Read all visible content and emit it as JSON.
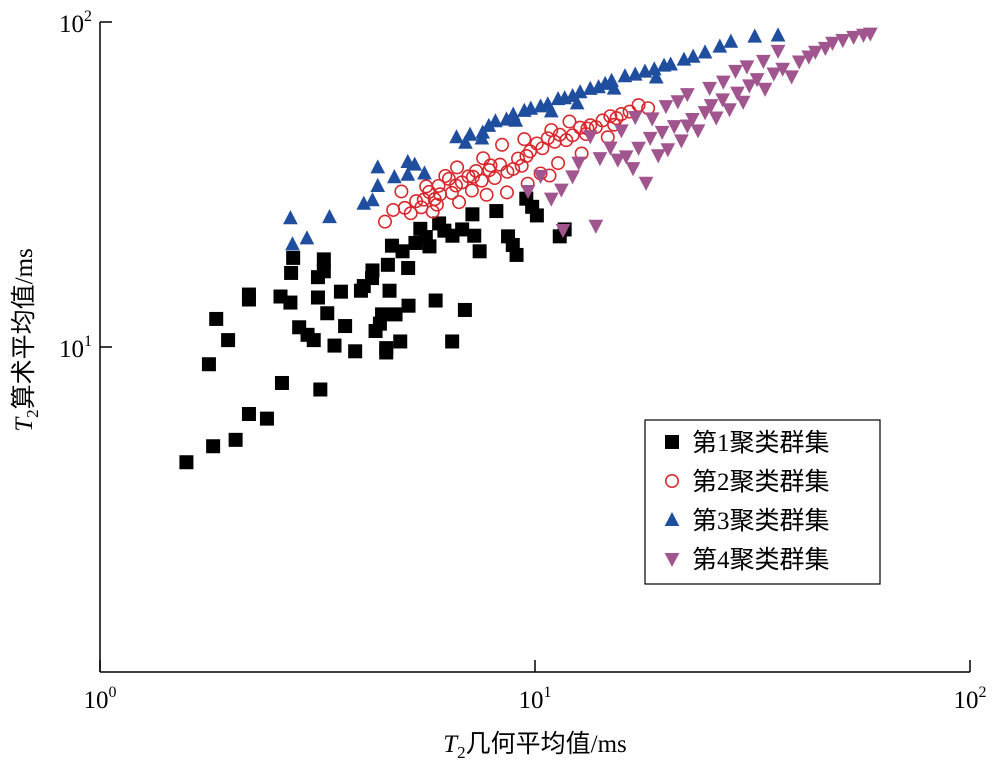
{
  "chart_data": {
    "type": "scatter",
    "title": "",
    "x_scale": "log",
    "y_scale": "log",
    "xlim": [
      1,
      100
    ],
    "ylim": [
      1,
      100
    ],
    "xlabel": {
      "main": "T",
      "sub": "2",
      "rest": "几何平均值/ms"
    },
    "ylabel": {
      "main": "T",
      "sub": "2",
      "rest": "算术平均值/ms"
    },
    "x_ticks": [
      {
        "value": 1,
        "base": "10",
        "exp": "0"
      },
      {
        "value": 10,
        "base": "10",
        "exp": "1"
      },
      {
        "value": 100,
        "base": "10",
        "exp": "2"
      }
    ],
    "y_ticks": [
      {
        "value": 10,
        "base": "10",
        "exp": "1"
      },
      {
        "value": 100,
        "base": "10",
        "exp": "2"
      }
    ],
    "grid": false,
    "legend_position": "lower-right",
    "series": [
      {
        "name": "第1聚类群集",
        "marker": "square",
        "color": "#000000",
        "points": [
          [
            1.58,
            4.42
          ],
          [
            1.82,
            4.95
          ],
          [
            2.05,
            5.18
          ],
          [
            1.78,
            8.85
          ],
          [
            1.85,
            12.2
          ],
          [
            1.97,
            10.5
          ],
          [
            2.2,
            14.5
          ],
          [
            2.2,
            14.0
          ],
          [
            2.2,
            6.22
          ],
          [
            2.42,
            6.02
          ],
          [
            2.62,
            7.75
          ],
          [
            2.6,
            14.3
          ],
          [
            2.74,
            13.7
          ],
          [
            2.75,
            16.9
          ],
          [
            2.78,
            18.8
          ],
          [
            2.87,
            11.5
          ],
          [
            3.0,
            10.9
          ],
          [
            3.1,
            10.5
          ],
          [
            3.21,
            7.4
          ],
          [
            3.17,
            16.4
          ],
          [
            3.17,
            14.2
          ],
          [
            3.27,
            18.6
          ],
          [
            3.27,
            17.1
          ],
          [
            3.33,
            12.7
          ],
          [
            3.46,
            10.1
          ],
          [
            3.58,
            14.8
          ],
          [
            3.66,
            11.6
          ],
          [
            3.86,
            9.7
          ],
          [
            3.98,
            14.9
          ],
          [
            4.04,
            15.4
          ],
          [
            4.22,
            16.3
          ],
          [
            4.23,
            17.2
          ],
          [
            4.3,
            11.2
          ],
          [
            4.4,
            11.8
          ],
          [
            4.45,
            12.6
          ],
          [
            4.55,
            9.62
          ],
          [
            4.55,
            9.92
          ],
          [
            4.59,
            17.9
          ],
          [
            4.63,
            14.9
          ],
          [
            4.69,
            20.5
          ],
          [
            4.78,
            12.6
          ],
          [
            4.9,
            10.4
          ],
          [
            4.96,
            19.7
          ],
          [
            5.12,
            13.4
          ],
          [
            5.11,
            17.5
          ],
          [
            5.31,
            20.9
          ],
          [
            5.61,
            21.8
          ],
          [
            5.72,
            20.4
          ],
          [
            5.91,
            13.9
          ],
          [
            6.19,
            22.8
          ],
          [
            6.46,
            22.0
          ],
          [
            6.8,
            23.0
          ],
          [
            6.45,
            10.4
          ],
          [
            6.9,
            13.0
          ],
          [
            7.18,
            25.6
          ],
          [
            7.25,
            22.0
          ],
          [
            7.46,
            19.7
          ],
          [
            8.15,
            26.2
          ],
          [
            8.67,
            21.9
          ],
          [
            8.89,
            20.6
          ],
          [
            9.07,
            19.2
          ],
          [
            9.55,
            28.6
          ],
          [
            9.85,
            27.0
          ],
          [
            10.1,
            25.4
          ],
          [
            11.4,
            21.9
          ],
          [
            11.7,
            23.0
          ],
          [
            6.02,
            24.0
          ],
          [
            5.45,
            23.1
          ]
        ]
      },
      {
        "name": "第2聚类群集",
        "marker": "circle-open",
        "color": "#d8272c",
        "points": [
          [
            4.52,
            24.3
          ],
          [
            4.72,
            26.4
          ],
          [
            5.02,
            26.8
          ],
          [
            5.18,
            25.8
          ],
          [
            5.33,
            28.1
          ],
          [
            5.48,
            26.9
          ],
          [
            5.55,
            28.4
          ],
          [
            5.71,
            30.0
          ],
          [
            5.82,
            26.1
          ],
          [
            5.95,
            27.4
          ],
          [
            5.62,
            31.2
          ],
          [
            6.0,
            31.3
          ],
          [
            6.05,
            29.5
          ],
          [
            6.22,
            33.6
          ],
          [
            6.44,
            29.8
          ],
          [
            6.58,
            31.4
          ],
          [
            6.69,
            27.9
          ],
          [
            6.79,
            32.1
          ],
          [
            7.03,
            33.5
          ],
          [
            7.16,
            30.3
          ],
          [
            7.32,
            34.8
          ],
          [
            7.54,
            32.5
          ],
          [
            7.85,
            35.0
          ],
          [
            8.08,
            33.1
          ],
          [
            8.31,
            36.4
          ],
          [
            8.64,
            34.6
          ],
          [
            8.91,
            35.3
          ],
          [
            9.14,
            38.0
          ],
          [
            9.32,
            36.1
          ],
          [
            9.56,
            38.7
          ],
          [
            9.74,
            40.0
          ],
          [
            10.1,
            42.3
          ],
          [
            10.4,
            40.9
          ],
          [
            10.7,
            43.9
          ],
          [
            11.1,
            42.8
          ],
          [
            11.4,
            45.0
          ],
          [
            11.8,
            43.3
          ],
          [
            12.2,
            44.8
          ],
          [
            12.7,
            47.3
          ],
          [
            13.1,
            45.2
          ],
          [
            13.4,
            48.1
          ],
          [
            13.8,
            47.5
          ],
          [
            14.3,
            49.8
          ],
          [
            14.9,
            51.3
          ],
          [
            15.4,
            50.6
          ],
          [
            15.8,
            52.1
          ],
          [
            16.5,
            53.0
          ],
          [
            17.3,
            55.5
          ],
          [
            18.2,
            54.3
          ],
          [
            8.62,
            29.9
          ],
          [
            7.74,
            29.4
          ],
          [
            7.2,
            33.4
          ],
          [
            6.34,
            32.9
          ],
          [
            5.88,
            28.5
          ],
          [
            4.93,
            30.1
          ],
          [
            7.6,
            38.1
          ],
          [
            8.4,
            41.9
          ],
          [
            9.45,
            43.6
          ],
          [
            10.9,
            46.5
          ],
          [
            12.0,
            49.4
          ],
          [
            13.2,
            47.0
          ],
          [
            11.3,
            36.8
          ],
          [
            10.3,
            34.2
          ],
          [
            12.8,
            39.4
          ],
          [
            14.7,
            44.2
          ],
          [
            9.62,
            31.8
          ],
          [
            10.8,
            33.7
          ],
          [
            15.2,
            48.3
          ],
          [
            6.62,
            35.7
          ],
          [
            7.9,
            36.2
          ]
        ]
      },
      {
        "name": "第3聚类群集",
        "marker": "triangle-up",
        "color": "#1f4e9e",
        "points": [
          [
            2.77,
            20.7
          ],
          [
            2.74,
            24.9
          ],
          [
            2.99,
            21.6
          ],
          [
            3.37,
            25.1
          ],
          [
            4.04,
            27.6
          ],
          [
            4.23,
            28.3
          ],
          [
            4.35,
            31.3
          ],
          [
            4.35,
            35.7
          ],
          [
            4.75,
            33.3
          ],
          [
            5.1,
            37.1
          ],
          [
            5.29,
            36.4
          ],
          [
            5.57,
            34.2
          ],
          [
            6.6,
            44.2
          ],
          [
            7.09,
            45.0
          ],
          [
            7.58,
            45.7
          ],
          [
            7.83,
            47.9
          ],
          [
            8.11,
            49.5
          ],
          [
            8.6,
            50.1
          ],
          [
            8.91,
            51.9
          ],
          [
            9.45,
            53.3
          ],
          [
            9.78,
            54.1
          ],
          [
            10.3,
            55.0
          ],
          [
            10.7,
            55.8
          ],
          [
            11.3,
            57.9
          ],
          [
            11.7,
            58.3
          ],
          [
            12.2,
            59.2
          ],
          [
            12.7,
            60.8
          ],
          [
            13.4,
            62.3
          ],
          [
            14.0,
            63.0
          ],
          [
            14.5,
            64.5
          ],
          [
            15.0,
            65.9
          ],
          [
            16.1,
            68.1
          ],
          [
            17.0,
            68.9
          ],
          [
            17.9,
            70.4
          ],
          [
            18.8,
            71.5
          ],
          [
            19.8,
            73.4
          ],
          [
            20.5,
            74.0
          ],
          [
            22.0,
            76.6
          ],
          [
            23.1,
            78.2
          ],
          [
            24.6,
            80.6
          ],
          [
            26.6,
            84.0
          ],
          [
            28.2,
            87.0
          ],
          [
            32.0,
            90.2
          ],
          [
            36.2,
            90.9
          ],
          [
            6.92,
            42.5
          ],
          [
            5.1,
            33.9
          ],
          [
            7.55,
            43.8
          ],
          [
            9.03,
            49.7
          ],
          [
            10.9,
            53.1
          ],
          [
            12.5,
            56.2
          ],
          [
            15.2,
            62.4
          ],
          [
            19.0,
            67.5
          ]
        ]
      },
      {
        "name": "第4聚类群集",
        "marker": "triangle-down",
        "color": "#a0558f",
        "points": [
          [
            9.64,
            30.2
          ],
          [
            10.3,
            33.6
          ],
          [
            10.9,
            28.6
          ],
          [
            11.5,
            30.5
          ],
          [
            11.6,
            22.9
          ],
          [
            12.2,
            33.5
          ],
          [
            12.6,
            36.9
          ],
          [
            13.8,
            23.6
          ],
          [
            14.1,
            38.1
          ],
          [
            14.9,
            41.1
          ],
          [
            15.5,
            37.7
          ],
          [
            16.2,
            38.6
          ],
          [
            16.8,
            35.5
          ],
          [
            17.3,
            41.0
          ],
          [
            18.0,
            32.0
          ],
          [
            18.4,
            44.0
          ],
          [
            19.2,
            38.9
          ],
          [
            19.6,
            45.9
          ],
          [
            20.2,
            40.6
          ],
          [
            20.9,
            47.8
          ],
          [
            21.7,
            43.2
          ],
          [
            22.4,
            48.0
          ],
          [
            23.0,
            50.3
          ],
          [
            23.7,
            46.4
          ],
          [
            24.6,
            52.8
          ],
          [
            25.4,
            55.5
          ],
          [
            26.1,
            50.8
          ],
          [
            27.0,
            57.8
          ],
          [
            28.0,
            53.9
          ],
          [
            29.2,
            60.6
          ],
          [
            30.1,
            56.8
          ],
          [
            31.1,
            63.8
          ],
          [
            32.4,
            66.7
          ],
          [
            33.8,
            62.3
          ],
          [
            35.4,
            69.4
          ],
          [
            37.1,
            71.8
          ],
          [
            38.9,
            68.0
          ],
          [
            40.5,
            75.6
          ],
          [
            42.6,
            78.3
          ],
          [
            44.1,
            81.0
          ],
          [
            46.5,
            83.2
          ],
          [
            48.3,
            86.3
          ],
          [
            51.0,
            88.0
          ],
          [
            54.0,
            90.0
          ],
          [
            56.9,
            91.3
          ],
          [
            59.0,
            92.1
          ],
          [
            25.2,
            62.7
          ],
          [
            28.9,
            70.7
          ],
          [
            33.5,
            75.9
          ],
          [
            20.0,
            55.1
          ],
          [
            22.4,
            60.0
          ],
          [
            17.0,
            51.0
          ],
          [
            15.8,
            46.4
          ],
          [
            13.4,
            44.5
          ],
          [
            21.3,
            57.0
          ],
          [
            18.6,
            50.5
          ],
          [
            27.1,
            65.5
          ],
          [
            30.7,
            73.0
          ],
          [
            36.2,
            81.5
          ]
        ]
      }
    ]
  }
}
